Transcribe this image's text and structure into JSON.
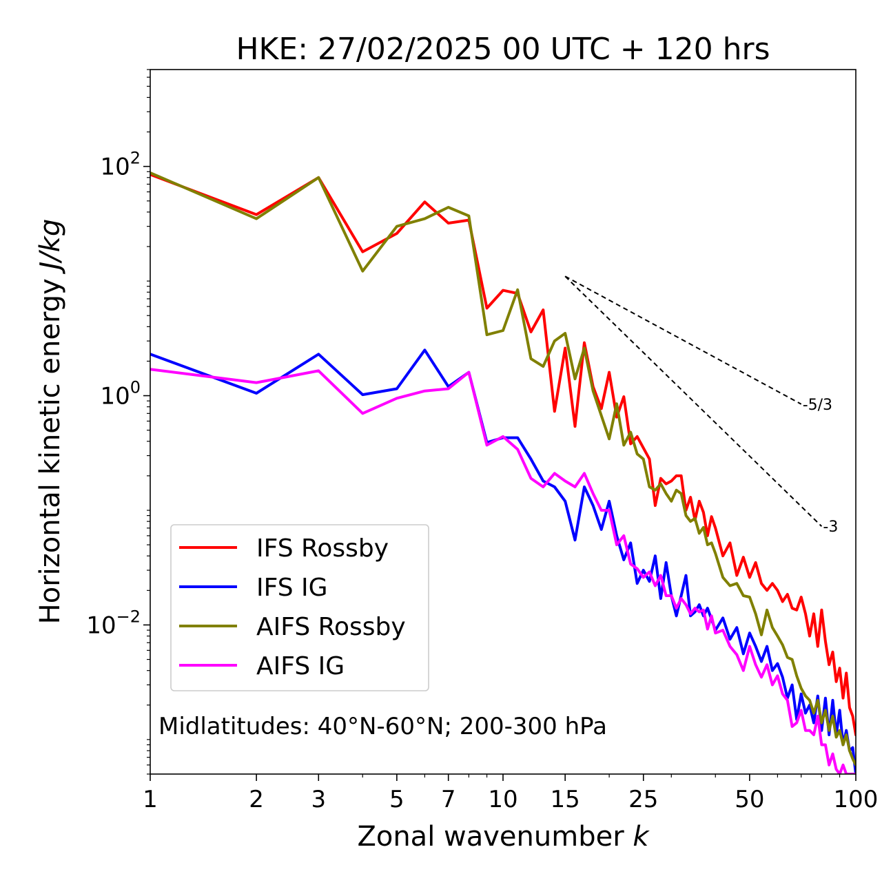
{
  "chart_data": {
    "type": "line",
    "title": "HKE: 27/02/2025 00 UTC + 120 hrs",
    "xlabel": "Zonal wavenumber",
    "xlabel_var": "k",
    "ylabel": "Horizontal kinetic energy",
    "ylabel_unit": "J/kg",
    "xscale": "log",
    "yscale": "log",
    "xlim": [
      1,
      100
    ],
    "ylim": [
      0.0005,
      700
    ],
    "xticks": [
      {
        "v": 1,
        "label": "1"
      },
      {
        "v": 2,
        "label": "2"
      },
      {
        "v": 3,
        "label": "3"
      },
      {
        "v": 5,
        "label": "5"
      },
      {
        "v": 7,
        "label": "7"
      },
      {
        "v": 10,
        "label": "10"
      },
      {
        "v": 15,
        "label": "15"
      },
      {
        "v": 25,
        "label": "25"
      },
      {
        "v": 50,
        "label": "50"
      },
      {
        "v": 100,
        "label": "100"
      }
    ],
    "yticks": [
      {
        "v": 100,
        "base": "10",
        "exp": "2"
      },
      {
        "v": 1,
        "base": "10",
        "exp": "0"
      },
      {
        "v": 0.01,
        "base": "10",
        "exp": "−2"
      }
    ],
    "annotation": "Midlatitudes: 40°N-60°N; 200-300 hPa",
    "legend_position": "lower-left",
    "slope_lines": [
      {
        "label": "-5/3",
        "slope": -1.6667,
        "x0": 15,
        "y0": 11.0,
        "x1": 70
      },
      {
        "label": "-3",
        "slope": -3,
        "x0": 15,
        "y0": 11.0,
        "x1": 80
      }
    ],
    "series": [
      {
        "name": "IFS Rossby",
        "color": "#ff0000",
        "points": [
          [
            1,
            85
          ],
          [
            2,
            38
          ],
          [
            3,
            80
          ],
          [
            4,
            18
          ],
          [
            5,
            26
          ],
          [
            6,
            49
          ],
          [
            7,
            32
          ],
          [
            8,
            34
          ],
          [
            9,
            5.8
          ],
          [
            10,
            8.3
          ],
          [
            11,
            7.8
          ],
          [
            12,
            3.6
          ],
          [
            13,
            5.6
          ],
          [
            14,
            0.73
          ],
          [
            15,
            2.6
          ],
          [
            16,
            0.54
          ],
          [
            17,
            2.9
          ],
          [
            18,
            1.2
          ],
          [
            19,
            0.77
          ],
          [
            20,
            1.6
          ],
          [
            21,
            0.65
          ],
          [
            22,
            0.98
          ],
          [
            23,
            0.38
          ],
          [
            24,
            0.44
          ],
          [
            25,
            0.35
          ],
          [
            26,
            0.28
          ],
          [
            27,
            0.11
          ],
          [
            28,
            0.19
          ],
          [
            29,
            0.17
          ],
          [
            30,
            0.18
          ],
          [
            31,
            0.2
          ],
          [
            32,
            0.2
          ],
          [
            33,
            0.1
          ],
          [
            34,
            0.13
          ],
          [
            35,
            0.082
          ],
          [
            36,
            0.12
          ],
          [
            37,
            0.096
          ],
          [
            38,
            0.06
          ],
          [
            39,
            0.088
          ],
          [
            40,
            0.07
          ],
          [
            42,
            0.04
          ],
          [
            44,
            0.052
          ],
          [
            46,
            0.027
          ],
          [
            48,
            0.039
          ],
          [
            50,
            0.026
          ],
          [
            52,
            0.035
          ],
          [
            54,
            0.023
          ],
          [
            56,
            0.02
          ],
          [
            58,
            0.023
          ],
          [
            60,
            0.02
          ],
          [
            62,
            0.016
          ],
          [
            64,
            0.0185
          ],
          [
            66,
            0.014
          ],
          [
            68,
            0.0135
          ],
          [
            70,
            0.0175
          ],
          [
            72,
            0.0125
          ],
          [
            74,
            0.008
          ],
          [
            76,
            0.0125
          ],
          [
            78,
            0.0065
          ],
          [
            80,
            0.0135
          ],
          [
            82,
            0.0072
          ],
          [
            84,
            0.0045
          ],
          [
            86,
            0.0058
          ],
          [
            88,
            0.0032
          ],
          [
            90,
            0.0042
          ],
          [
            92,
            0.0023
          ],
          [
            94,
            0.0038
          ],
          [
            96,
            0.0019
          ],
          [
            98,
            0.0016
          ],
          [
            100,
            0.0011
          ]
        ]
      },
      {
        "name": "IFS IG",
        "color": "#0000ff",
        "points": [
          [
            1,
            2.3
          ],
          [
            2,
            1.05
          ],
          [
            3,
            2.3
          ],
          [
            4,
            1.02
          ],
          [
            5,
            1.15
          ],
          [
            6,
            2.5
          ],
          [
            7,
            1.2
          ],
          [
            8,
            1.6
          ],
          [
            9,
            0.39
          ],
          [
            10,
            0.43
          ],
          [
            11,
            0.43
          ],
          [
            12,
            0.28
          ],
          [
            13,
            0.18
          ],
          [
            14,
            0.16
          ],
          [
            15,
            0.12
          ],
          [
            16,
            0.055
          ],
          [
            17,
            0.16
          ],
          [
            18,
            0.11
          ],
          [
            19,
            0.068
          ],
          [
            20,
            0.12
          ],
          [
            21,
            0.06
          ],
          [
            22,
            0.037
          ],
          [
            23,
            0.052
          ],
          [
            24,
            0.023
          ],
          [
            25,
            0.03
          ],
          [
            26,
            0.024
          ],
          [
            27,
            0.04
          ],
          [
            28,
            0.017
          ],
          [
            29,
            0.035
          ],
          [
            30,
            0.018
          ],
          [
            31,
            0.012
          ],
          [
            32,
            0.018
          ],
          [
            33,
            0.027
          ],
          [
            34,
            0.012
          ],
          [
            35,
            0.013
          ],
          [
            36,
            0.015
          ],
          [
            37,
            0.012
          ],
          [
            38,
            0.014
          ],
          [
            40,
            0.009
          ],
          [
            42,
            0.0115
          ],
          [
            44,
            0.0075
          ],
          [
            46,
            0.0095
          ],
          [
            48,
            0.0056
          ],
          [
            50,
            0.0085
          ],
          [
            52,
            0.0065
          ],
          [
            54,
            0.0048
          ],
          [
            56,
            0.0065
          ],
          [
            58,
            0.004
          ],
          [
            60,
            0.0046
          ],
          [
            62,
            0.0035
          ],
          [
            64,
            0.0023
          ],
          [
            66,
            0.003
          ],
          [
            68,
            0.0015
          ],
          [
            70,
            0.0025
          ],
          [
            72,
            0.0017
          ],
          [
            74,
            0.002
          ],
          [
            76,
            0.0014
          ],
          [
            78,
            0.0024
          ],
          [
            80,
            0.0012
          ],
          [
            82,
            0.0023
          ],
          [
            84,
            0.0011
          ],
          [
            86,
            0.0022
          ],
          [
            88,
            0.0011
          ],
          [
            90,
            0.0018
          ],
          [
            92,
            0.0009
          ],
          [
            94,
            0.0012
          ],
          [
            96,
            0.0008
          ],
          [
            98,
            0.00085
          ],
          [
            100,
            0.0005
          ]
        ]
      },
      {
        "name": "AIFS Rossby",
        "color": "#808000",
        "points": [
          [
            1,
            88
          ],
          [
            2,
            35
          ],
          [
            3,
            80
          ],
          [
            4,
            12.2
          ],
          [
            5,
            30
          ],
          [
            6,
            35
          ],
          [
            7,
            44
          ],
          [
            8,
            37
          ],
          [
            9,
            3.4
          ],
          [
            10,
            3.7
          ],
          [
            11,
            8.4
          ],
          [
            12,
            2.1
          ],
          [
            13,
            1.8
          ],
          [
            14,
            3.0
          ],
          [
            15,
            3.5
          ],
          [
            16,
            1.4
          ],
          [
            17,
            2.6
          ],
          [
            18,
            1.1
          ],
          [
            19,
            0.67
          ],
          [
            20,
            0.42
          ],
          [
            21,
            0.85
          ],
          [
            22,
            0.37
          ],
          [
            23,
            0.48
          ],
          [
            24,
            0.31
          ],
          [
            25,
            0.28
          ],
          [
            26,
            0.16
          ],
          [
            27,
            0.15
          ],
          [
            28,
            0.17
          ],
          [
            29,
            0.14
          ],
          [
            30,
            0.12
          ],
          [
            31,
            0.15
          ],
          [
            32,
            0.14
          ],
          [
            33,
            0.09
          ],
          [
            34,
            0.08
          ],
          [
            35,
            0.085
          ],
          [
            36,
            0.063
          ],
          [
            37,
            0.071
          ],
          [
            38,
            0.05
          ],
          [
            39,
            0.052
          ],
          [
            40,
            0.042
          ],
          [
            42,
            0.026
          ],
          [
            44,
            0.022
          ],
          [
            46,
            0.023
          ],
          [
            48,
            0.018
          ],
          [
            50,
            0.0175
          ],
          [
            52,
            0.0125
          ],
          [
            54,
            0.0082
          ],
          [
            56,
            0.0135
          ],
          [
            58,
            0.0095
          ],
          [
            60,
            0.008
          ],
          [
            62,
            0.0067
          ],
          [
            64,
            0.0052
          ],
          [
            66,
            0.005
          ],
          [
            68,
            0.0036
          ],
          [
            70,
            0.0028
          ],
          [
            72,
            0.0024
          ],
          [
            74,
            0.0022
          ],
          [
            76,
            0.0017
          ],
          [
            78,
            0.0022
          ],
          [
            80,
            0.0014
          ],
          [
            82,
            0.0018
          ],
          [
            84,
            0.0012
          ],
          [
            86,
            0.0016
          ],
          [
            88,
            0.00105
          ],
          [
            90,
            0.0012
          ],
          [
            92,
            0.0009
          ],
          [
            94,
            0.0011
          ],
          [
            96,
            0.0008
          ],
          [
            98,
            0.00068
          ],
          [
            100,
            0.0006
          ]
        ]
      },
      {
        "name": "AIFS IG",
        "color": "#ff00ff",
        "points": [
          [
            1,
            1.7
          ],
          [
            2,
            1.3
          ],
          [
            3,
            1.65
          ],
          [
            4,
            0.7
          ],
          [
            5,
            0.95
          ],
          [
            6,
            1.1
          ],
          [
            7,
            1.15
          ],
          [
            8,
            1.6
          ],
          [
            9,
            0.37
          ],
          [
            10,
            0.44
          ],
          [
            11,
            0.34
          ],
          [
            12,
            0.19
          ],
          [
            13,
            0.16
          ],
          [
            14,
            0.21
          ],
          [
            15,
            0.18
          ],
          [
            16,
            0.16
          ],
          [
            17,
            0.21
          ],
          [
            18,
            0.14
          ],
          [
            19,
            0.1
          ],
          [
            20,
            0.1
          ],
          [
            21,
            0.05
          ],
          [
            22,
            0.06
          ],
          [
            23,
            0.034
          ],
          [
            24,
            0.031
          ],
          [
            25,
            0.026
          ],
          [
            26,
            0.029
          ],
          [
            27,
            0.022
          ],
          [
            28,
            0.027
          ],
          [
            29,
            0.018
          ],
          [
            30,
            0.018
          ],
          [
            31,
            0.014
          ],
          [
            32,
            0.017
          ],
          [
            33,
            0.015
          ],
          [
            34,
            0.0125
          ],
          [
            35,
            0.014
          ],
          [
            36,
            0.013
          ],
          [
            37,
            0.0135
          ],
          [
            38,
            0.0092
          ],
          [
            39,
            0.012
          ],
          [
            40,
            0.0085
          ],
          [
            42,
            0.009
          ],
          [
            44,
            0.0065
          ],
          [
            46,
            0.0055
          ],
          [
            48,
            0.004
          ],
          [
            50,
            0.0065
          ],
          [
            52,
            0.0045
          ],
          [
            54,
            0.0035
          ],
          [
            56,
            0.0045
          ],
          [
            58,
            0.003
          ],
          [
            60,
            0.0036
          ],
          [
            62,
            0.0025
          ],
          [
            64,
            0.0022
          ],
          [
            66,
            0.0013
          ],
          [
            68,
            0.0014
          ],
          [
            70,
            0.0018
          ],
          [
            72,
            0.0012
          ],
          [
            74,
            0.0012
          ],
          [
            76,
            0.0011
          ],
          [
            78,
            0.0016
          ],
          [
            80,
            0.0009
          ],
          [
            82,
            0.0009
          ],
          [
            84,
            0.0006
          ],
          [
            86,
            0.00075
          ],
          [
            88,
            0.00055
          ],
          [
            90,
            0.0005
          ],
          [
            92,
            0.0006
          ],
          [
            94,
            0.0005
          ],
          [
            96,
            0.0005
          ],
          [
            98,
            0.0005
          ],
          [
            100,
            0.0005
          ]
        ]
      }
    ]
  }
}
